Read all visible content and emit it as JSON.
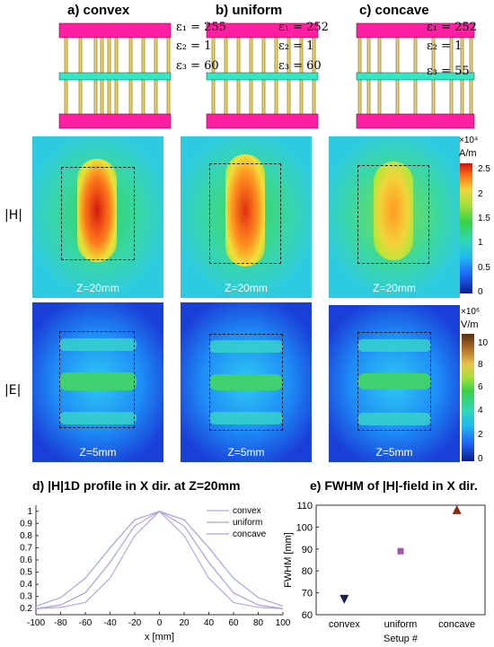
{
  "setups": [
    {
      "title": "a) convex",
      "eps1": "ε₁ = 255",
      "eps2": "ε₂ = 1",
      "eps3": "ε₃ = 60"
    },
    {
      "title": "b) uniform",
      "eps1": "ε₁ = 252",
      "eps2": "ε₂ = 1",
      "eps3": "ε₃ = 60"
    },
    {
      "title": "c) concave",
      "eps1": "ε₁ = 252",
      "eps2": "ε₂ = 1",
      "eps3": "ε₃ = 55"
    }
  ],
  "h_row": {
    "label": "|H|",
    "z_label": "Z=20mm",
    "cb_exp": "×10⁴",
    "cb_unit": "A/m",
    "cb_ticks": [
      "2.5",
      "2",
      "1.5",
      "1",
      "0.5",
      "0"
    ]
  },
  "e_row": {
    "label": "|E|",
    "z_label": "Z=5mm",
    "cb_exp": "×10⁶",
    "cb_unit": "V/m",
    "cb_ticks": [
      "10",
      "8",
      "6",
      "4",
      "2",
      "0"
    ]
  },
  "colors": {
    "pink": "#ff1fa2",
    "teal": "#33e6c4",
    "gold": "#f0d46a"
  },
  "chart_data": [
    {
      "type": "line",
      "title": "d) |H|1D profile in X dir. at Z=20mm",
      "xlabel": "x [mm]",
      "ylabel": "",
      "xlim": [
        -100,
        100
      ],
      "ylim": [
        0.15,
        1.05
      ],
      "xticks": [
        -100,
        -80,
        -60,
        -40,
        -20,
        0,
        20,
        40,
        60,
        80,
        100
      ],
      "yticks": [
        0.2,
        0.3,
        0.4,
        0.5,
        0.6,
        0.7,
        0.8,
        0.9,
        1
      ],
      "legend_position": "top-right",
      "series": [
        {
          "name": "convex",
          "color": "#b8a9e0",
          "x": [
            -100,
            -80,
            -60,
            -40,
            -20,
            0,
            20,
            40,
            60,
            80,
            100
          ],
          "y": [
            0.2,
            0.21,
            0.25,
            0.45,
            0.8,
            1.0,
            0.8,
            0.45,
            0.25,
            0.21,
            0.2
          ]
        },
        {
          "name": "uniform",
          "color": "#b39ddb",
          "x": [
            -100,
            -80,
            -60,
            -40,
            -20,
            0,
            20,
            40,
            60,
            80,
            100
          ],
          "y": [
            0.2,
            0.23,
            0.33,
            0.58,
            0.88,
            1.0,
            0.88,
            0.58,
            0.33,
            0.23,
            0.2
          ]
        },
        {
          "name": "concave",
          "color": "#9fa8da",
          "x": [
            -100,
            -80,
            -60,
            -40,
            -20,
            0,
            20,
            40,
            60,
            80,
            100
          ],
          "y": [
            0.22,
            0.29,
            0.45,
            0.7,
            0.93,
            1.0,
            0.93,
            0.7,
            0.45,
            0.29,
            0.22
          ]
        }
      ]
    },
    {
      "type": "scatter",
      "title": "e) FWHM of |H|-field in X dir.",
      "xlabel": "Setup #",
      "ylabel": "FWHM  [mm]",
      "categories": [
        "convex",
        "uniform",
        "concave"
      ],
      "ylim": [
        60,
        110
      ],
      "yticks": [
        60,
        70,
        80,
        90,
        100,
        110
      ],
      "series": [
        {
          "name": "",
          "values": [
            67,
            89,
            108
          ],
          "markers": [
            "triangle-down",
            "square",
            "triangle-up"
          ],
          "colors": [
            "#1a1f5c",
            "#a652b0",
            "#8b2a12"
          ]
        }
      ]
    }
  ]
}
